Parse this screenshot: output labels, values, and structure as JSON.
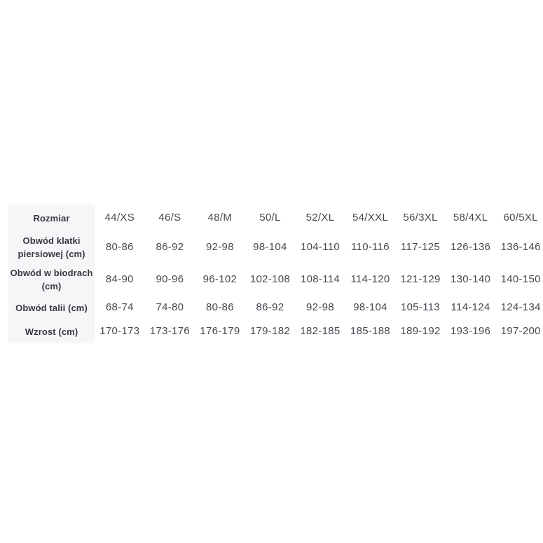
{
  "chart_data": {
    "type": "table",
    "title": "",
    "corner_header": "Rozmiar",
    "column_headers": [
      "44/XS",
      "46/S",
      "48/M",
      "50/L",
      "52/XL",
      "54/XXL",
      "56/3XL",
      "58/4XL",
      "60/5XL"
    ],
    "rows": [
      {
        "header": "Obwód klatki piersiowej (cm)",
        "header_display": "Obwód klatki\npiersiowej (cm)",
        "values": [
          "80-86",
          "86-92",
          "92-98",
          "98-104",
          "104-110",
          "110-116",
          "117-125",
          "126-136",
          "136-146"
        ]
      },
      {
        "header": "Obwód w biodrach (cm)",
        "header_display": "Obwód w biodrach\n(cm)",
        "values": [
          "84-90",
          "90-96",
          "96-102",
          "102-108",
          "108-114",
          "114-120",
          "121-129",
          "130-140",
          "140-150"
        ]
      },
      {
        "header": "Obwód talii (cm)",
        "header_display": "Obwód talii (cm)",
        "values": [
          "68-74",
          "74-80",
          "80-86",
          "86-92",
          "92-98",
          "98-104",
          "105-113",
          "114-124",
          "124-134"
        ]
      },
      {
        "header": "Wzrost (cm)",
        "header_display": "Wzrost (cm)",
        "values": [
          "170-173",
          "173-176",
          "176-179",
          "179-182",
          "182-185",
          "185-188",
          "189-192",
          "193-196",
          "197-200"
        ]
      }
    ],
    "layout": {
      "gridlines": false,
      "first_column_shaded": true
    }
  },
  "colors": {
    "page_bg": "#ffffff",
    "row_header_bg": "#f6f6f8",
    "header_text": "#353a40",
    "cell_text": "#444950"
  }
}
